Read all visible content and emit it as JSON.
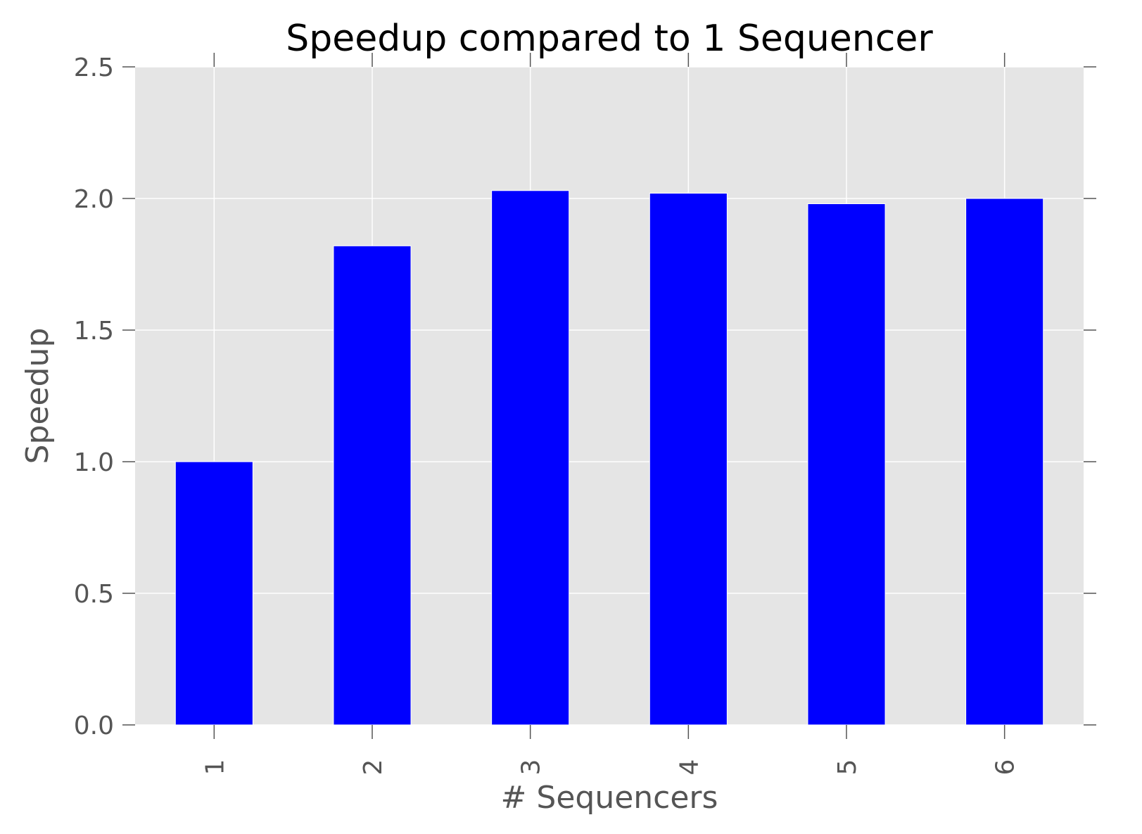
{
  "chart_data": {
    "type": "bar",
    "title": "Speedup compared to 1 Sequencer",
    "xlabel": "# Sequencers",
    "ylabel": "Speedup",
    "categories": [
      "1",
      "2",
      "3",
      "4",
      "5",
      "6"
    ],
    "values": [
      1.0,
      1.82,
      2.03,
      2.02,
      1.98,
      2.0
    ],
    "ylim": [
      0,
      2.5
    ],
    "yticks": [
      "0.0",
      "0.5",
      "1.0",
      "1.5",
      "2.0",
      "2.5"
    ],
    "grid": true,
    "x_tick_rotation": "vertical",
    "colors": {
      "bar": "#0000ff",
      "plot_background": "#e5e5e5",
      "grid": "#ffffff",
      "tick_text": "#555555"
    }
  }
}
